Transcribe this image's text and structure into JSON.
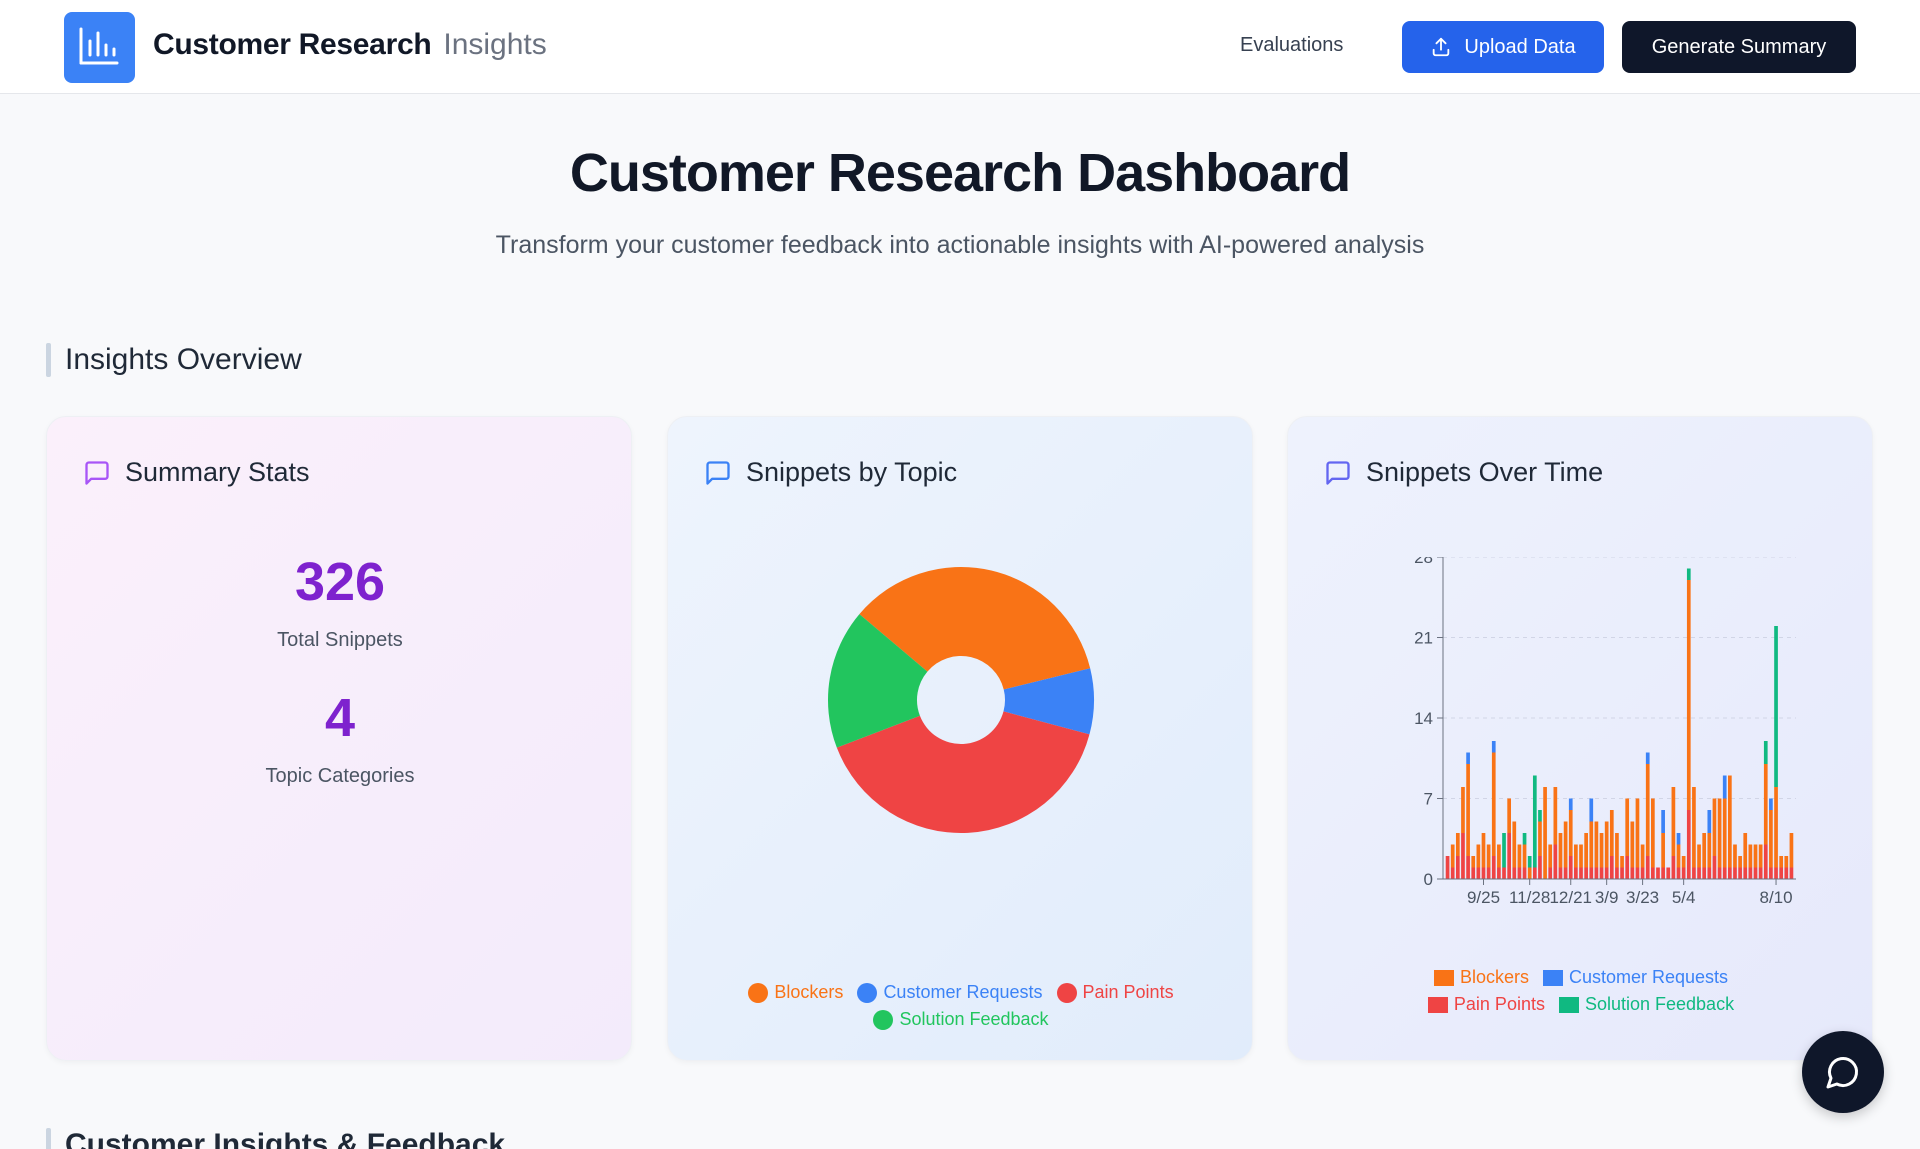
{
  "header": {
    "brand_main": "Customer Research",
    "brand_sub": "Insights",
    "nav_evaluations": "Evaluations",
    "upload_label": "Upload Data",
    "generate_label": "Generate Summary"
  },
  "hero": {
    "title": "Customer Research Dashboard",
    "subtitle": "Transform your customer feedback into actionable insights with AI-powered analysis"
  },
  "sections": {
    "insights_overview": "Insights Overview",
    "customer_insights": "Customer Insights & Feedback"
  },
  "cards": {
    "summary": {
      "title": "Summary Stats",
      "total_snippets": "326",
      "total_snippets_label": "Total Snippets",
      "topic_categories": "4",
      "topic_categories_label": "Topic Categories"
    },
    "topic": {
      "title": "Snippets by Topic"
    },
    "time": {
      "title": "Snippets Over Time"
    }
  },
  "colors": {
    "blockers": "#f97316",
    "customer_requests": "#3b82f6",
    "pain_points": "#ef4444",
    "solution_feedback": "#10b981",
    "solution_feedback_pie": "#22c55e"
  },
  "chart_data": [
    {
      "type": "pie",
      "title": "Snippets by Topic",
      "labels": [
        "Blockers",
        "Customer Requests",
        "Pain Points",
        "Solution Feedback"
      ],
      "values": [
        35,
        8,
        40,
        17
      ],
      "donut": true,
      "legend": "bottom"
    },
    {
      "type": "bar",
      "stacked": true,
      "title": "Snippets Over Time",
      "x_tick_labels": [
        "9/25",
        "11/28",
        "12/21",
        "3/9",
        "3/23",
        "5/4",
        "8/10"
      ],
      "yticks": [
        0,
        7,
        14,
        21,
        28
      ],
      "ylim": [
        0,
        28
      ],
      "grid": true,
      "legend": "bottom",
      "series": [
        {
          "name": "Blockers",
          "values": [
            0,
            2,
            2,
            4,
            8,
            1,
            2,
            3,
            2,
            9,
            2,
            0,
            3,
            4,
            2,
            2,
            1,
            0,
            3,
            8,
            2,
            5,
            3,
            4,
            4,
            2,
            2,
            3,
            4,
            4,
            3,
            4,
            4,
            3,
            1,
            5,
            4,
            6,
            2,
            8,
            6,
            0,
            3,
            0,
            6,
            2,
            1,
            20,
            7,
            2,
            3,
            3,
            5,
            6,
            6,
            8,
            2,
            1,
            3,
            2,
            2,
            2,
            7,
            5,
            7,
            1,
            1,
            3
          ]
        },
        {
          "name": "Customer Requests",
          "values": [
            0,
            0,
            0,
            0,
            1,
            0,
            0,
            0,
            0,
            1,
            0,
            0,
            0,
            0,
            0,
            0,
            0,
            0,
            0,
            0,
            0,
            0,
            0,
            0,
            1,
            0,
            0,
            0,
            2,
            0,
            0,
            0,
            0,
            0,
            0,
            0,
            0,
            0,
            0,
            1,
            0,
            0,
            2,
            0,
            0,
            1,
            0,
            0,
            0,
            0,
            0,
            2,
            0,
            0,
            2,
            0,
            0,
            0,
            0,
            0,
            0,
            0,
            0,
            1,
            0,
            0,
            0,
            0
          ]
        },
        {
          "name": "Pain Points",
          "values": [
            2,
            1,
            2,
            4,
            2,
            1,
            1,
            1,
            1,
            2,
            1,
            1,
            4,
            1,
            1,
            1,
            0,
            1,
            2,
            0,
            1,
            3,
            1,
            1,
            2,
            1,
            1,
            1,
            1,
            1,
            1,
            1,
            2,
            1,
            1,
            2,
            1,
            1,
            1,
            2,
            1,
            1,
            1,
            1,
            2,
            1,
            1,
            6,
            1,
            1,
            1,
            1,
            2,
            1,
            1,
            1,
            1,
            1,
            1,
            1,
            1,
            1,
            3,
            1,
            1,
            1,
            1,
            1
          ]
        },
        {
          "name": "Solution Feedback",
          "values": [
            0,
            0,
            0,
            0,
            0,
            0,
            0,
            0,
            0,
            0,
            0,
            3,
            0,
            0,
            0,
            1,
            1,
            8,
            1,
            0,
            0,
            0,
            0,
            0,
            0,
            0,
            0,
            0,
            0,
            0,
            0,
            0,
            0,
            0,
            0,
            0,
            0,
            0,
            0,
            0,
            0,
            0,
            0,
            0,
            0,
            0,
            0,
            1,
            0,
            0,
            0,
            0,
            0,
            0,
            0,
            0,
            0,
            0,
            0,
            0,
            0,
            0,
            2,
            0,
            14,
            0,
            0,
            0
          ]
        }
      ]
    }
  ]
}
